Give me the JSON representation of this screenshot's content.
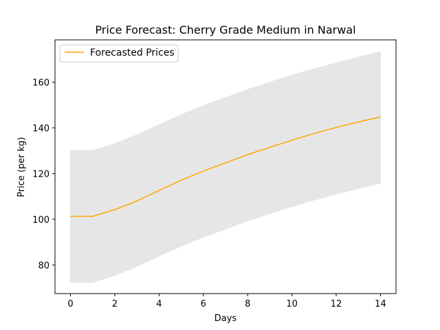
{
  "chart_data": {
    "type": "line",
    "title": "Price Forecast: Cherry Grade Medium in Narwal",
    "xlabel": "Days",
    "ylabel": "Price (per kg)",
    "xlim": [
      -0.7,
      14.7
    ],
    "ylim": [
      67.5,
      178.5
    ],
    "xticks": [
      0,
      2,
      4,
      6,
      8,
      10,
      12,
      14
    ],
    "yticks": [
      80,
      100,
      120,
      140,
      160
    ],
    "grid": false,
    "legend_position": "top-left",
    "series": [
      {
        "name": "Forecasted Prices",
        "color": "#FFA500",
        "x": [
          0,
          1,
          2,
          3,
          4,
          5,
          6,
          7,
          8,
          9,
          10,
          11,
          12,
          13,
          14
        ],
        "values": [
          101.3,
          101.3,
          104.2,
          108.0,
          112.6,
          117.1,
          121.1,
          124.7,
          128.3,
          131.5,
          134.6,
          137.5,
          140.2,
          142.6,
          144.8
        ],
        "band_lower": [
          72.4,
          72.4,
          75.4,
          79.4,
          83.9,
          88.3,
          92.2,
          95.7,
          99.3,
          102.5,
          105.5,
          108.4,
          111.0,
          113.5,
          115.8
        ],
        "band_upper": [
          130.2,
          130.2,
          133.1,
          137.0,
          141.4,
          145.8,
          149.7,
          153.2,
          156.8,
          160.0,
          163.0,
          165.8,
          168.4,
          171.0,
          173.3
        ],
        "band_color": "#e6e6e6"
      }
    ]
  }
}
